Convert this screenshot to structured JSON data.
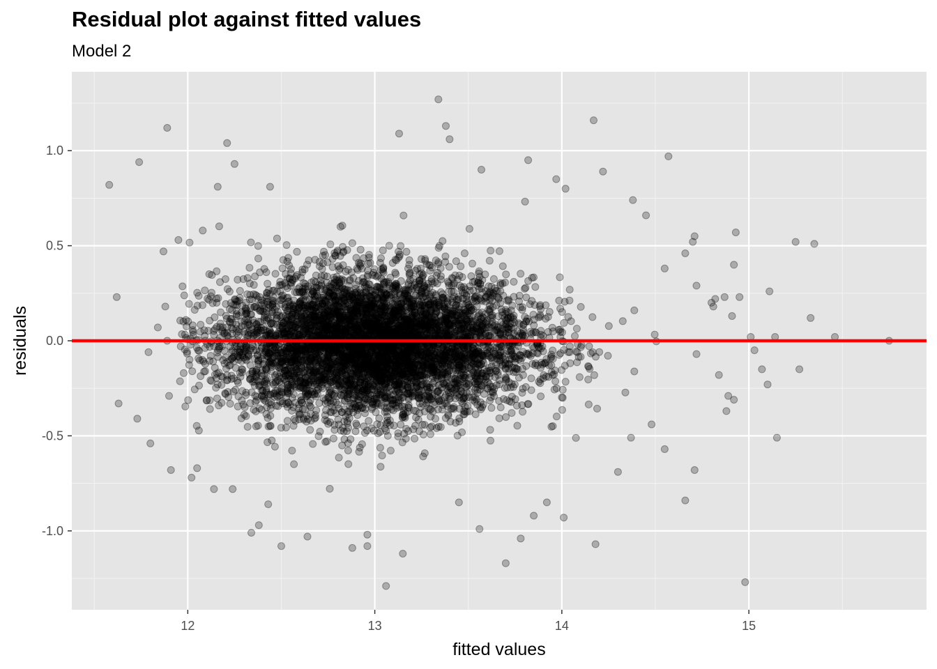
{
  "chart_data": {
    "type": "scatter",
    "title": "Residual plot against fitted values",
    "subtitle": "Model 2",
    "xlabel": "fitted values",
    "ylabel": "residuals",
    "xlim": [
      11.38,
      15.95
    ],
    "ylim": [
      -1.415,
      1.415
    ],
    "x_ticks": [
      12,
      13,
      14,
      15
    ],
    "x_tick_labels": [
      "12",
      "13",
      "14",
      "15"
    ],
    "y_ticks": [
      -1.0,
      -0.5,
      0.0,
      0.5,
      1.0
    ],
    "y_tick_labels": [
      "-1.0",
      "-0.5",
      "0.0",
      "0.5",
      "1.0"
    ],
    "grid": true,
    "point_color": "#000000",
    "point_opacity": 0.25,
    "panel_color": "#e5e5e5",
    "reference_line": {
      "y": 0,
      "color": "#ff0000"
    },
    "points_dense_region": {
      "description_hidden": true,
      "x_center": 13.0,
      "y_center": -0.02,
      "x_spread": 0.42,
      "y_spread": 0.19,
      "count": 6000
    },
    "outliers": [
      {
        "x": 11.58,
        "y": 0.82
      },
      {
        "x": 11.62,
        "y": 0.23
      },
      {
        "x": 11.63,
        "y": -0.33
      },
      {
        "x": 11.74,
        "y": 0.94
      },
      {
        "x": 11.73,
        "y": -0.41
      },
      {
        "x": 11.79,
        "y": -0.06
      },
      {
        "x": 11.8,
        "y": -0.54
      },
      {
        "x": 11.84,
        "y": 0.07
      },
      {
        "x": 11.87,
        "y": 0.47
      },
      {
        "x": 11.88,
        "y": 0.18
      },
      {
        "x": 11.89,
        "y": 1.12
      },
      {
        "x": 11.89,
        "y": 0.0
      },
      {
        "x": 11.9,
        "y": -0.29
      },
      {
        "x": 11.91,
        "y": -0.68
      },
      {
        "x": 11.95,
        "y": 0.53
      },
      {
        "x": 12.21,
        "y": 1.04
      },
      {
        "x": 12.25,
        "y": 0.93
      },
      {
        "x": 12.16,
        "y": 0.81
      },
      {
        "x": 12.44,
        "y": 0.81
      },
      {
        "x": 12.34,
        "y": -1.01
      },
      {
        "x": 12.5,
        "y": -1.08
      },
      {
        "x": 12.64,
        "y": -1.03
      },
      {
        "x": 12.88,
        "y": -1.09
      },
      {
        "x": 12.96,
        "y": -1.02
      },
      {
        "x": 12.96,
        "y": -1.08
      },
      {
        "x": 13.06,
        "y": -1.29
      },
      {
        "x": 13.15,
        "y": -1.12
      },
      {
        "x": 13.34,
        "y": 1.27
      },
      {
        "x": 13.38,
        "y": 1.13
      },
      {
        "x": 13.4,
        "y": 1.06
      },
      {
        "x": 13.13,
        "y": 1.09
      },
      {
        "x": 13.57,
        "y": 0.9
      },
      {
        "x": 13.7,
        "y": -1.17
      },
      {
        "x": 13.78,
        "y": -1.04
      },
      {
        "x": 14.01,
        "y": -0.93
      },
      {
        "x": 14.17,
        "y": 1.16
      },
      {
        "x": 14.18,
        "y": -1.07
      },
      {
        "x": 14.22,
        "y": 0.89
      },
      {
        "x": 14.57,
        "y": 0.97
      },
      {
        "x": 14.55,
        "y": 0.38
      },
      {
        "x": 14.55,
        "y": -0.57
      },
      {
        "x": 14.66,
        "y": 0.46
      },
      {
        "x": 14.66,
        "y": -0.84
      },
      {
        "x": 14.7,
        "y": 0.52
      },
      {
        "x": 14.71,
        "y": 0.55
      },
      {
        "x": 14.72,
        "y": 0.29
      },
      {
        "x": 14.71,
        "y": -0.68
      },
      {
        "x": 14.72,
        "y": -0.07
      },
      {
        "x": 14.8,
        "y": 0.2
      },
      {
        "x": 14.81,
        "y": 0.18
      },
      {
        "x": 14.82,
        "y": 0.22
      },
      {
        "x": 14.84,
        "y": -0.18
      },
      {
        "x": 14.87,
        "y": 0.23
      },
      {
        "x": 14.88,
        "y": -0.37
      },
      {
        "x": 14.89,
        "y": -0.29
      },
      {
        "x": 14.91,
        "y": 0.13
      },
      {
        "x": 14.92,
        "y": 0.4
      },
      {
        "x": 14.93,
        "y": 0.57
      },
      {
        "x": 14.95,
        "y": 0.23
      },
      {
        "x": 14.92,
        "y": -0.31
      },
      {
        "x": 15.01,
        "y": 0.02
      },
      {
        "x": 15.03,
        "y": -0.05
      },
      {
        "x": 15.07,
        "y": -0.15
      },
      {
        "x": 15.1,
        "y": -0.23
      },
      {
        "x": 15.11,
        "y": 0.26
      },
      {
        "x": 15.14,
        "y": 0.02
      },
      {
        "x": 15.15,
        "y": -0.51
      },
      {
        "x": 14.98,
        "y": -1.27
      },
      {
        "x": 15.25,
        "y": 0.52
      },
      {
        "x": 15.27,
        "y": -0.15
      },
      {
        "x": 15.33,
        "y": 0.12
      },
      {
        "x": 15.35,
        "y": 0.51
      },
      {
        "x": 15.46,
        "y": 0.02
      },
      {
        "x": 15.75,
        "y": 0.0
      },
      {
        "x": 14.45,
        "y": 0.66
      },
      {
        "x": 14.48,
        "y": -0.44
      },
      {
        "x": 14.37,
        "y": -0.51
      },
      {
        "x": 14.3,
        "y": -0.69
      },
      {
        "x": 14.38,
        "y": 0.74
      },
      {
        "x": 14.02,
        "y": 0.8
      },
      {
        "x": 13.97,
        "y": 0.85
      },
      {
        "x": 13.82,
        "y": 0.95
      },
      {
        "x": 12.08,
        "y": 0.58
      },
      {
        "x": 12.05,
        "y": -0.67
      },
      {
        "x": 12.02,
        "y": -0.72
      },
      {
        "x": 12.14,
        "y": -0.78
      },
      {
        "x": 12.38,
        "y": -0.97
      },
      {
        "x": 12.24,
        "y": -0.78
      },
      {
        "x": 12.43,
        "y": -0.86
      },
      {
        "x": 13.45,
        "y": -0.85
      },
      {
        "x": 13.56,
        "y": -0.99
      },
      {
        "x": 13.92,
        "y": -0.85
      },
      {
        "x": 13.85,
        "y": -0.92
      }
    ]
  }
}
